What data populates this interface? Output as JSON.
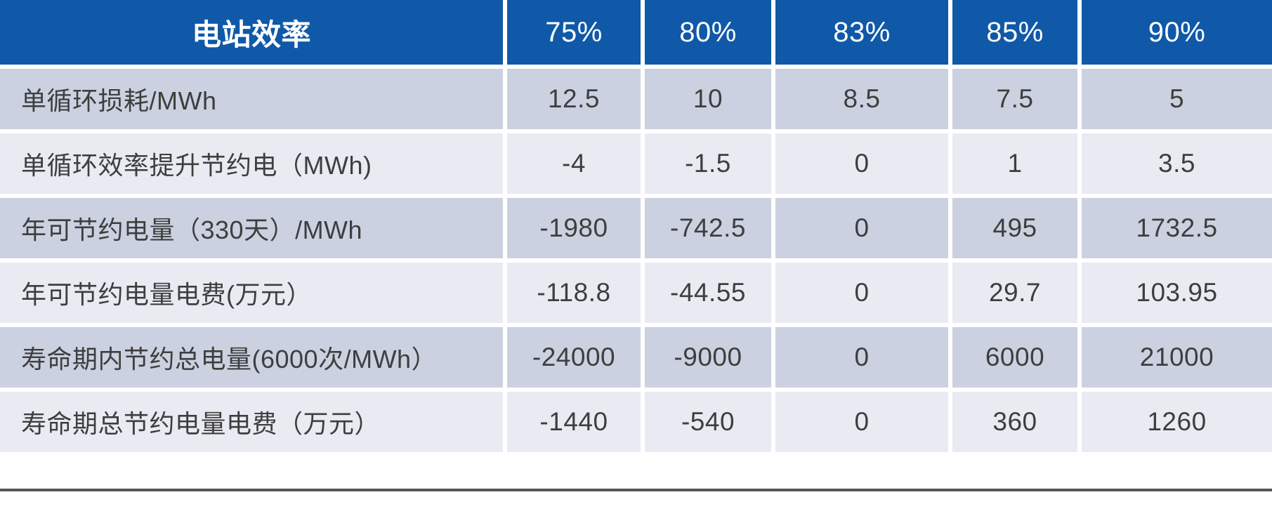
{
  "table": {
    "header": {
      "label": "电站效率",
      "columns": [
        "75%",
        "80%",
        "83%",
        "85%",
        "90%"
      ]
    },
    "rows": [
      {
        "label": "单循环损耗/MWh",
        "values": [
          "12.5",
          "10",
          "8.5",
          "7.5",
          "5"
        ]
      },
      {
        "label": "单循环效率提升节约电（MWh)",
        "values": [
          "-4",
          "-1.5",
          "0",
          "1",
          "3.5"
        ]
      },
      {
        "label": "年可节约电量（330天）/MWh",
        "values": [
          "-1980",
          "-742.5",
          "0",
          "495",
          "1732.5"
        ]
      },
      {
        "label": "年可节约电量电费(万元）",
        "values": [
          "-118.8",
          "-44.55",
          "0",
          "29.7",
          "103.95"
        ]
      },
      {
        "label": "寿命期内节约总电量(6000次/MWh）",
        "values": [
          "-24000",
          "-9000",
          "0",
          "6000",
          "21000"
        ]
      },
      {
        "label": "寿命期总节约电量电费（万元）",
        "values": [
          "-1440",
          "-540",
          "0",
          "360",
          "1260"
        ]
      }
    ],
    "colors": {
      "header_bg": "#0F59A8",
      "header_text": "#FFFFFF",
      "row_dark": "#CBD1E0",
      "row_light": "#E9EBF3",
      "body_text": "#3E3E3E",
      "separator": "#FFFFFF",
      "bottom_line": "#54575C"
    }
  },
  "chart_data": {
    "type": "table",
    "title": "电站效率",
    "categories": [
      "75%",
      "80%",
      "83%",
      "85%",
      "90%"
    ],
    "series": [
      {
        "name": "单循环损耗/MWh",
        "values": [
          12.5,
          10,
          8.5,
          7.5,
          5
        ]
      },
      {
        "name": "单循环效率提升节约电（MWh)",
        "values": [
          -4,
          -1.5,
          0,
          1,
          3.5
        ]
      },
      {
        "name": "年可节约电量（330天）/MWh",
        "values": [
          -1980,
          -742.5,
          0,
          495,
          1732.5
        ]
      },
      {
        "name": "年可节约电量电费(万元）",
        "values": [
          -118.8,
          -44.55,
          0,
          29.7,
          103.95
        ]
      },
      {
        "name": "寿命期内节约总电量(6000次/MWh）",
        "values": [
          -24000,
          -9000,
          0,
          6000,
          21000
        ]
      },
      {
        "name": "寿命期总节约电量电费（万元）",
        "values": [
          -1440,
          -540,
          0,
          360,
          1260
        ]
      }
    ],
    "layout": {
      "header_row": true,
      "alternating_rows": true,
      "legend_position": "none",
      "grid": false
    }
  }
}
